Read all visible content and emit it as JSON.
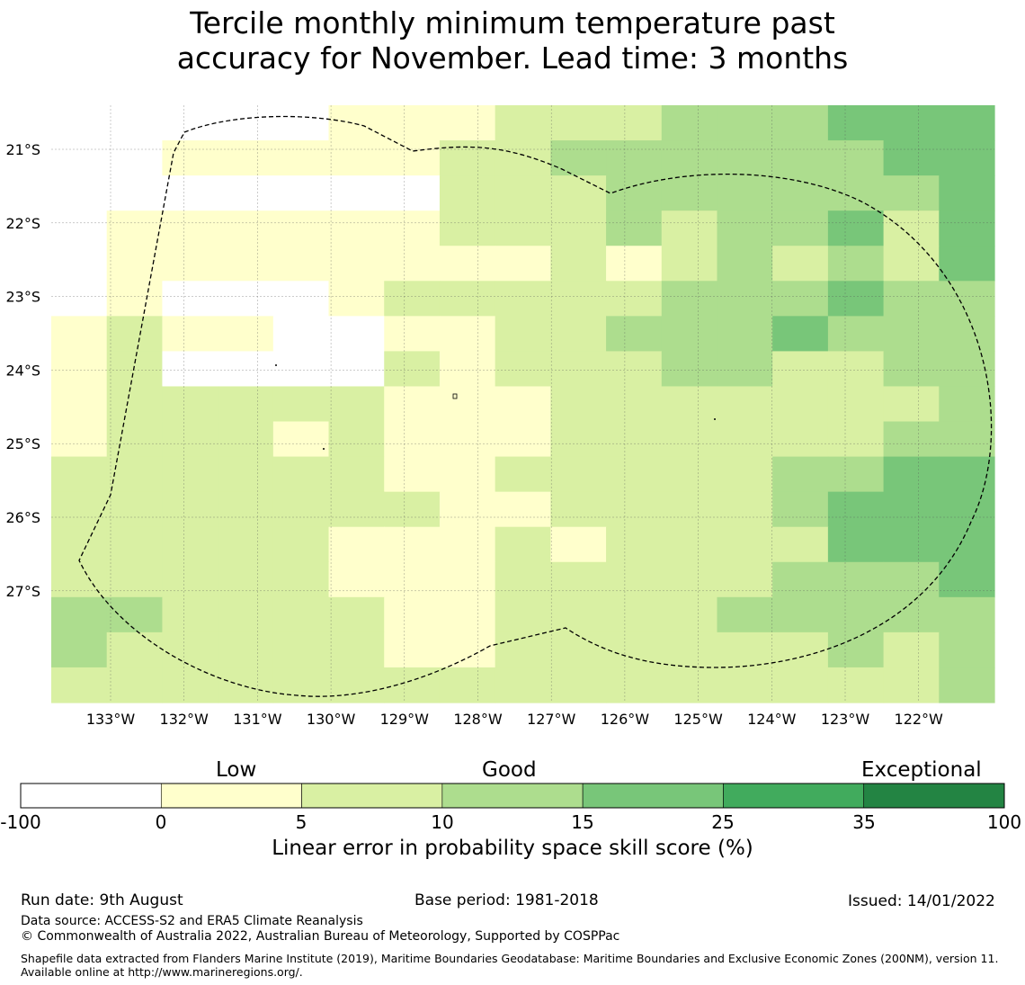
{
  "title": {
    "line1": "Tercile monthly minimum temperature past",
    "line2": "accuracy for November. Lead time: 3 months"
  },
  "map": {
    "lat_labels": [
      "21°S",
      "22°S",
      "23°S",
      "24°S",
      "25°S",
      "26°S",
      "27°S"
    ],
    "lon_labels": [
      "133°W",
      "132°W",
      "131°W",
      "130°W",
      "129°W",
      "128°W",
      "127°W",
      "126°W",
      "125°W",
      "124°W",
      "123°W",
      "122°W"
    ],
    "value_class_grid_rows_north_to_south": [
      "00000111222333444",
      "00111112233333344",
      "00000002223333334",
      "01111112223233424",
      "01111111121232324",
      "01000122222333433",
      "12110011223334333",
      "12000021222332233",
      "12222211122222223",
      "12221211122222233",
      "22222211222223344",
      "22222221122223444",
      "22222111212222444",
      "22222111222223334",
      "33222211222233333",
      "32222211222222323",
      "22222222222222223"
    ],
    "colors": [
      "#ffffff",
      "#ffffcc",
      "#d9f0a3",
      "#addd8e",
      "#78c679",
      "#41ab5d",
      "#238443"
    ],
    "boundary": "dashed EEZ outline"
  },
  "colorbar": {
    "category_words": [
      "Low",
      "Good",
      "Exceptional"
    ],
    "ticks": [
      "-100",
      "0",
      "5",
      "10",
      "15",
      "25",
      "35",
      "100"
    ],
    "label": "Linear error in probability space skill score (%)",
    "bins": [
      {
        "from": -100,
        "to": 0,
        "color": "#ffffff"
      },
      {
        "from": 0,
        "to": 5,
        "color": "#ffffcc"
      },
      {
        "from": 5,
        "to": 10,
        "color": "#d9f0a3"
      },
      {
        "from": 10,
        "to": 15,
        "color": "#addd8e"
      },
      {
        "from": 15,
        "to": 25,
        "color": "#78c679"
      },
      {
        "from": 25,
        "to": 35,
        "color": "#41ab5d"
      },
      {
        "from": 35,
        "to": 100,
        "color": "#238443"
      }
    ]
  },
  "footer": {
    "run_date": "Run date: 9th August",
    "base_period": "Base period: 1981-2018",
    "issued": "Issued: 14/01/2022",
    "data_source": "Data source: ACCESS-S2 and ERA5 Climate Reanalysis",
    "copyright": "© Commonwealth of Australia 2022, Australian Bureau of Meteorology, Supported by COSPPac",
    "shapefile": "Shapefile data extracted from Flanders Marine Institute (2019), Maritime Boundaries Geodatabase: Maritime Boundaries and Exclusive Economic Zones (200NM), version 11. Available online at http://www.marineregions.org/."
  }
}
